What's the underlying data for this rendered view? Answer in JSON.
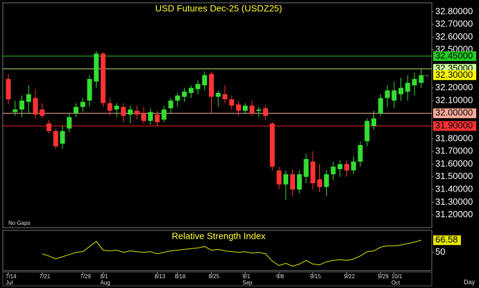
{
  "chart_data": {
    "type": "candlestick",
    "title": "USD Futures Dec-25 (USDZ25)",
    "note": "No Gaps",
    "categories": [
      "7/14",
      null,
      null,
      null,
      null,
      "7/21",
      null,
      null,
      null,
      null,
      null,
      "7/29",
      null,
      null,
      "8/1",
      null,
      null,
      null,
      null,
      null,
      null,
      null,
      "8/13",
      null,
      null,
      "8/18",
      null,
      null,
      null,
      null,
      "8/25",
      null,
      null,
      null,
      null,
      "9/1",
      null,
      null,
      null,
      null,
      "9/8",
      null,
      null,
      null,
      null,
      "9/15",
      null,
      null,
      null,
      null,
      "9/22",
      null,
      null,
      null,
      null,
      "9/29",
      null,
      "10/1",
      null,
      null,
      null,
      null
    ],
    "months": [
      {
        "label": "Jul",
        "index": 0
      },
      {
        "label": "Aug",
        "index": 14
      },
      {
        "label": "Sep",
        "index": 35
      },
      {
        "label": "Oct",
        "index": 57
      }
    ],
    "open": [
      32.27,
      32.01,
      32.03,
      32.09,
      32.12,
      32.03,
      31.92,
      31.86,
      31.76,
      31.88,
      32.0,
      32.05,
      32.1,
      32.25,
      32.47,
      32.08,
      32.03,
      32.05,
      31.99,
      32.02,
      32.0,
      31.94,
      31.99,
      31.95,
      32.04,
      32.1,
      32.13,
      32.16,
      32.19,
      32.22,
      32.31,
      32.13,
      32.15,
      32.11,
      32.07,
      32.02,
      32.06,
      32.02,
      32.04,
      31.92,
      31.55,
      31.44,
      31.52,
      31.4,
      31.5,
      31.62,
      31.48,
      31.42,
      31.52,
      31.56,
      31.6,
      31.55,
      31.62,
      31.78,
      31.9,
      32.0,
      32.12,
      32.1,
      32.15,
      32.17,
      32.22,
      32.24
    ],
    "high": [
      32.31,
      32.1,
      32.14,
      32.22,
      32.19,
      32.08,
      31.95,
      31.88,
      31.9,
      32.0,
      32.08,
      32.12,
      32.3,
      32.49,
      32.48,
      32.12,
      32.08,
      32.08,
      32.06,
      32.06,
      32.05,
      32.04,
      32.02,
      32.06,
      32.12,
      32.16,
      32.2,
      32.22,
      32.26,
      32.33,
      32.33,
      32.18,
      32.22,
      32.14,
      32.1,
      32.08,
      32.1,
      32.05,
      32.06,
      31.93,
      31.58,
      31.55,
      31.56,
      31.55,
      31.68,
      31.7,
      31.6,
      31.55,
      31.62,
      31.63,
      31.63,
      31.66,
      31.78,
      31.96,
      32.02,
      32.15,
      32.22,
      32.25,
      32.28,
      32.3,
      32.32,
      32.35
    ],
    "low": [
      32.07,
      31.98,
      31.97,
      32.0,
      31.96,
      31.96,
      31.84,
      31.72,
      31.72,
      31.85,
      31.97,
      32.01,
      32.05,
      32.2,
      32.05,
      31.98,
      31.97,
      31.93,
      31.92,
      31.95,
      31.92,
      31.91,
      31.9,
      31.93,
      32.0,
      32.05,
      32.09,
      32.12,
      32.15,
      32.18,
      32.0,
      32.05,
      32.08,
      32.03,
      31.98,
      32.0,
      31.98,
      31.97,
      31.95,
      31.55,
      31.4,
      31.32,
      31.35,
      31.37,
      31.45,
      31.4,
      31.38,
      31.35,
      31.47,
      31.5,
      31.5,
      31.52,
      31.58,
      31.74,
      31.87,
      31.98,
      32.05,
      32.04,
      32.1,
      32.1,
      32.14,
      32.2
    ],
    "close": [
      32.11,
      32.03,
      32.1,
      32.15,
      31.99,
      31.98,
      31.86,
      31.74,
      31.86,
      31.97,
      32.05,
      32.09,
      32.27,
      32.47,
      32.08,
      32.02,
      32.06,
      31.98,
      32.03,
      31.99,
      31.94,
      32.01,
      31.93,
      32.03,
      32.1,
      32.14,
      32.17,
      32.2,
      32.23,
      32.3,
      32.13,
      32.16,
      32.11,
      32.06,
      32.02,
      32.06,
      32.0,
      32.03,
      31.98,
      31.58,
      31.44,
      31.52,
      31.4,
      31.52,
      31.64,
      31.45,
      31.42,
      31.52,
      31.58,
      31.6,
      31.55,
      31.62,
      31.75,
      31.94,
      31.96,
      32.12,
      32.18,
      32.18,
      32.2,
      32.24,
      32.27,
      32.3
    ],
    "up_color": "#33dd33",
    "down_color": "#ff3333",
    "ylim": [
      31.1,
      32.87
    ],
    "yticks": [
      {
        "value": 31.2,
        "label": "31.20000"
      },
      {
        "value": 31.3,
        "label": "31.30000"
      },
      {
        "value": 31.4,
        "label": "31.40000"
      },
      {
        "value": 31.5,
        "label": "31.50000"
      },
      {
        "value": 31.6,
        "label": "31.60000"
      },
      {
        "value": 31.7,
        "label": "31.70000"
      },
      {
        "value": 31.8,
        "label": "31.80000"
      },
      {
        "value": 32.1,
        "label": "32.10000"
      },
      {
        "value": 32.2,
        "label": "32.20000"
      },
      {
        "value": 32.5,
        "label": "32.50000"
      },
      {
        "value": 32.6,
        "label": "32.60000"
      },
      {
        "value": 32.7,
        "label": "32.70000"
      },
      {
        "value": 32.8,
        "label": "32.80000"
      }
    ],
    "reference_lines": [
      {
        "value": 32.45,
        "label": "32.45000",
        "color": "#22cc22",
        "label_color": "#22cc22"
      },
      {
        "value": 32.35,
        "label": "32.35000",
        "color": "#bbee77",
        "label_color": "#ccff99"
      },
      {
        "value": 32.0,
        "label": "32.00000",
        "color": "#ffb0a0",
        "label_color": "#ffaa99"
      },
      {
        "value": 31.9,
        "label": "31.90000",
        "color": "#ee2222",
        "label_color": "#ff3333"
      }
    ],
    "last_label": {
      "value": 32.3,
      "label": "32.30000",
      "color": "#ffff00"
    },
    "indicator": {
      "name": "Relative Strength Index",
      "color": "#e6e600",
      "values": [
        null,
        null,
        null,
        null,
        null,
        48,
        45,
        41,
        44,
        47,
        50,
        51,
        58,
        65,
        53,
        52,
        53,
        50,
        52,
        51,
        50,
        51,
        48,
        50,
        52,
        53,
        54,
        55,
        56,
        58,
        53,
        54,
        52,
        51,
        50,
        51,
        49,
        50,
        48,
        38,
        32,
        35,
        31,
        34,
        39,
        34,
        33,
        37,
        39,
        40,
        39,
        41,
        45,
        51,
        52,
        57,
        59,
        59,
        60,
        62,
        64,
        66.58
      ],
      "value_label": "66.58",
      "ylim": [
        25,
        80
      ],
      "yticks": [
        50
      ]
    },
    "period": "Day"
  }
}
